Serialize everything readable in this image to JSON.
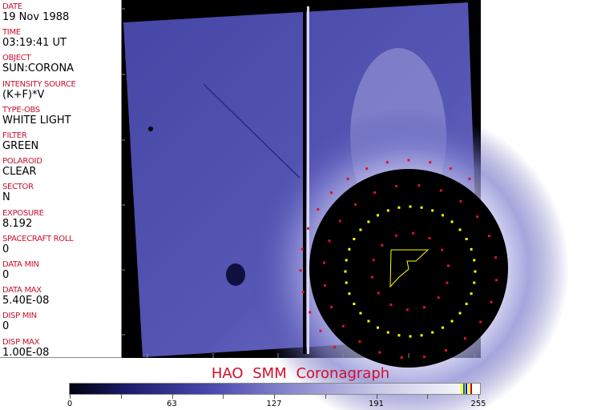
{
  "fields": [
    {
      "label": "DATE",
      "value": "19 Nov 1988"
    },
    {
      "label": "TIME",
      "value": "03:19:41 UT"
    },
    {
      "label": "OBJECT",
      "value": "SUN:CORONA"
    },
    {
      "label": "INTENSITY SOURCE",
      "value": "(K+F)*V"
    },
    {
      "label": "TYPE-OBS",
      "value": "WHITE LIGHT"
    },
    {
      "label": "FILTER",
      "value": "GREEN"
    },
    {
      "label": "POLAROID",
      "value": "CLEAR"
    },
    {
      "label": "SECTOR",
      "value": "N"
    },
    {
      "label": "EXPOSURE",
      "value": "8.192"
    },
    {
      "label": "SPACECRAFT ROLL",
      "value": "0"
    },
    {
      "label": "DATA MIN",
      "value": "0"
    },
    {
      "label": "DATA MAX",
      "value": "5.40E-08"
    },
    {
      "label": "DISP MIN",
      "value": "0"
    },
    {
      "label": "DISP MAX",
      "value": "1.00E-08"
    }
  ],
  "title": "HAO  SMM  Coronagraph",
  "colorbar": {
    "ticks": [
      "0",
      "63",
      "127",
      "191",
      "255"
    ],
    "colormap_colors": [
      "#000010",
      "#4a4ab0",
      "#c8c8e8",
      "#ffffff"
    ],
    "overlay_colors": [
      "#ffff00",
      "#008000",
      "#0000c0",
      "#c00000"
    ]
  },
  "colors": {
    "label": "#c8102e",
    "marker_red": "#e0102e",
    "marker_yellow": "#ffff00",
    "sky": "#5a5ab8"
  }
}
